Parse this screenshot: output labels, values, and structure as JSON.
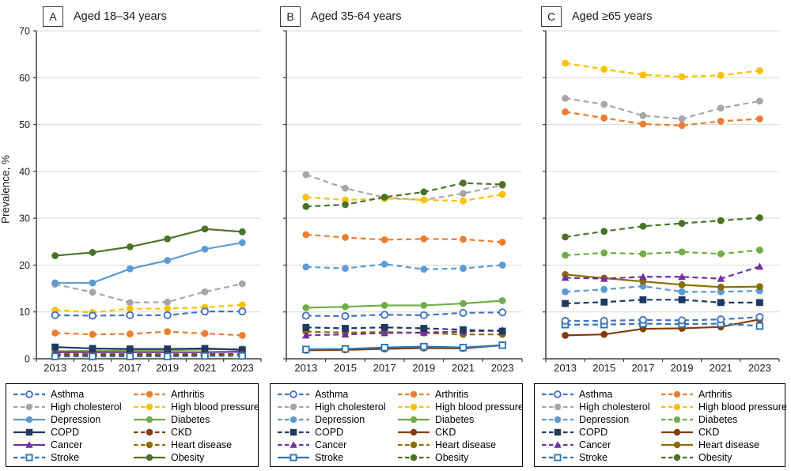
{
  "ylabel": "Prevalence, %",
  "years": [
    "2013",
    "2015",
    "2017",
    "2019",
    "2021",
    "2023"
  ],
  "y_axis": {
    "min": 0,
    "max": 70,
    "tick_step": 10,
    "ticks": [
      "0",
      "10",
      "20",
      "30",
      "40",
      "50",
      "60",
      "70"
    ]
  },
  "legend_columns": {
    "left": [
      "asthma",
      "high_cholesterol",
      "depression",
      "copd",
      "cancer",
      "stroke"
    ],
    "right": [
      "arthritis",
      "high_blood_pressure",
      "diabetes",
      "ckd",
      "heart_disease",
      "obesity"
    ]
  },
  "series_meta": {
    "asthma": {
      "label": "Asthma",
      "color": "#4472C4",
      "marker": "circle-open"
    },
    "arthritis": {
      "label": "Arthritis",
      "color": "#ED7D31",
      "marker": "circle"
    },
    "high_cholesterol": {
      "label": "High cholesterol",
      "color": "#A6A6A6",
      "marker": "circle"
    },
    "high_blood_pressure": {
      "label": "High blood pressure",
      "color": "#FFC000",
      "marker": "circle"
    },
    "depression": {
      "label": "Depression",
      "color": "#5B9BD5",
      "marker": "circle"
    },
    "diabetes": {
      "label": "Diabetes",
      "color": "#70AD47",
      "marker": "circle"
    },
    "copd": {
      "label": "COPD",
      "color": "#1F3864",
      "marker": "square"
    },
    "ckd": {
      "label": "CKD",
      "color": "#843C0C",
      "marker": "circle"
    },
    "cancer": {
      "label": "Cancer",
      "color": "#7030A0",
      "marker": "triangle"
    },
    "heart_disease": {
      "label": "Heart disease",
      "color": "#8A6D00",
      "marker": "circle"
    },
    "stroke": {
      "label": "Stroke",
      "color": "#2E75B6",
      "marker": "square-open"
    },
    "obesity": {
      "label": "Obesity",
      "color": "#4A7328",
      "marker": "circle"
    }
  },
  "chart_data": [
    {
      "type": "line",
      "panel_letter": "A",
      "title": "Aged 18–34 years",
      "xlabel": "",
      "ylabel": "Prevalence, %",
      "x": [
        "2013",
        "2015",
        "2017",
        "2019",
        "2021",
        "2023"
      ],
      "ylim": [
        0,
        70
      ],
      "grid": true,
      "legend_position": "bottom-box",
      "series": {
        "asthma": {
          "style": "dashed",
          "values": [
            9.3,
            9.2,
            9.3,
            9.3,
            10.1,
            10.1
          ]
        },
        "arthritis": {
          "style": "dashed",
          "values": [
            5.5,
            5.2,
            5.3,
            5.8,
            5.4,
            5.0
          ]
        },
        "high_cholesterol": {
          "style": "dashed",
          "values": [
            15.9,
            14.2,
            12.0,
            12.1,
            14.3,
            16.0
          ]
        },
        "high_blood_pressure": {
          "style": "dashed",
          "values": [
            10.4,
            9.9,
            10.7,
            10.7,
            11.0,
            11.5
          ]
        },
        "depression": {
          "style": "solid",
          "values": [
            16.2,
            16.2,
            19.2,
            21.0,
            23.4,
            24.8
          ]
        },
        "diabetes": {
          "style": "solid",
          "values": [
            1.6,
            1.7,
            1.8,
            1.8,
            2.0,
            2.1
          ]
        },
        "copd": {
          "style": "solid",
          "values": [
            2.5,
            2.2,
            2.1,
            2.1,
            2.2,
            1.9
          ]
        },
        "ckd": {
          "style": "dashed",
          "values": [
            0.8,
            0.8,
            0.8,
            0.8,
            0.9,
            1.0
          ]
        },
        "cancer": {
          "style": "solid",
          "values": [
            1.4,
            1.4,
            1.4,
            1.4,
            1.4,
            1.5
          ]
        },
        "heart_disease": {
          "style": "dashed",
          "values": [
            1.1,
            1.0,
            1.0,
            1.0,
            1.0,
            1.0
          ]
        },
        "stroke": {
          "style": "dashed",
          "values": [
            0.5,
            0.5,
            0.5,
            0.5,
            0.6,
            0.6
          ]
        },
        "obesity": {
          "style": "solid",
          "values": [
            22.0,
            22.7,
            23.9,
            25.6,
            27.7,
            27.1
          ]
        }
      }
    },
    {
      "type": "line",
      "panel_letter": "B",
      "title": "Aged 35-64 years",
      "xlabel": "",
      "ylabel": "Prevalence, %",
      "x": [
        "2013",
        "2015",
        "2017",
        "2019",
        "2021",
        "2023"
      ],
      "ylim": [
        0,
        70
      ],
      "grid": true,
      "legend_position": "bottom-box",
      "series": {
        "asthma": {
          "style": "dashed",
          "values": [
            9.2,
            9.1,
            9.4,
            9.3,
            9.8,
            9.9
          ]
        },
        "arthritis": {
          "style": "dashed",
          "values": [
            26.5,
            25.9,
            25.4,
            25.6,
            25.5,
            24.9
          ]
        },
        "high_cholesterol": {
          "style": "dashed",
          "values": [
            39.3,
            36.4,
            34.4,
            33.9,
            35.3,
            37.0
          ]
        },
        "high_blood_pressure": {
          "style": "dashed",
          "values": [
            34.5,
            33.9,
            34.2,
            33.9,
            33.7,
            35.1
          ]
        },
        "depression": {
          "style": "dashed",
          "values": [
            19.6,
            19.3,
            20.2,
            19.1,
            19.3,
            20.0
          ]
        },
        "diabetes": {
          "style": "solid",
          "values": [
            10.9,
            11.1,
            11.4,
            11.4,
            11.8,
            12.4
          ]
        },
        "copd": {
          "style": "dashed",
          "values": [
            6.7,
            6.5,
            6.7,
            6.5,
            6.2,
            5.9
          ]
        },
        "ckd": {
          "style": "solid",
          "values": [
            1.8,
            1.9,
            2.1,
            2.3,
            2.2,
            2.9
          ]
        },
        "cancer": {
          "style": "dashed",
          "values": [
            5.0,
            5.2,
            5.5,
            5.6,
            5.8,
            6.1
          ]
        },
        "heart_disease": {
          "style": "dashed",
          "values": [
            5.8,
            5.6,
            5.7,
            5.5,
            5.2,
            5.2
          ]
        },
        "stroke": {
          "style": "solid",
          "values": [
            2.0,
            2.1,
            2.4,
            2.6,
            2.4,
            2.9
          ]
        },
        "obesity": {
          "style": "dashed",
          "values": [
            32.5,
            32.9,
            34.5,
            35.6,
            37.5,
            37.2
          ]
        }
      }
    },
    {
      "type": "line",
      "panel_letter": "C",
      "title": "Aged ≥65 years",
      "xlabel": "",
      "ylabel": "Prevalence, %",
      "x": [
        "2013",
        "2015",
        "2017",
        "2019",
        "2021",
        "2023"
      ],
      "ylim": [
        0,
        70
      ],
      "grid": true,
      "legend_position": "bottom-box",
      "series": {
        "asthma": {
          "style": "dashed",
          "values": [
            8.1,
            8.1,
            8.3,
            8.2,
            8.4,
            8.9
          ]
        },
        "arthritis": {
          "style": "dashed",
          "values": [
            52.7,
            51.4,
            50.1,
            49.8,
            50.7,
            51.2
          ]
        },
        "high_cholesterol": {
          "style": "dashed",
          "values": [
            55.6,
            54.3,
            51.9,
            51.2,
            53.5,
            55.0
          ]
        },
        "high_blood_pressure": {
          "style": "dashed",
          "values": [
            63.1,
            61.8,
            60.6,
            60.2,
            60.5,
            61.5
          ]
        },
        "depression": {
          "style": "dashed",
          "values": [
            14.3,
            14.8,
            15.5,
            14.3,
            14.3,
            14.5
          ]
        },
        "diabetes": {
          "style": "dashed",
          "values": [
            22.1,
            22.6,
            22.4,
            22.8,
            22.4,
            23.2
          ]
        },
        "copd": {
          "style": "dashed",
          "values": [
            11.8,
            12.1,
            12.6,
            12.6,
            12.0,
            12.0
          ]
        },
        "ckd": {
          "style": "solid",
          "values": [
            5.0,
            5.2,
            6.4,
            6.5,
            6.8,
            8.4
          ]
        },
        "cancer": {
          "style": "dashed",
          "values": [
            17.3,
            17.1,
            17.5,
            17.5,
            17.1,
            19.7
          ]
        },
        "heart_disease": {
          "style": "solid",
          "values": [
            18.0,
            17.2,
            16.5,
            15.8,
            15.3,
            15.4
          ]
        },
        "stroke": {
          "style": "dashed",
          "values": [
            7.3,
            7.3,
            7.5,
            7.4,
            7.5,
            7.0
          ]
        },
        "obesity": {
          "style": "dashed",
          "values": [
            26.0,
            27.2,
            28.3,
            28.9,
            29.5,
            30.1
          ]
        }
      }
    }
  ]
}
